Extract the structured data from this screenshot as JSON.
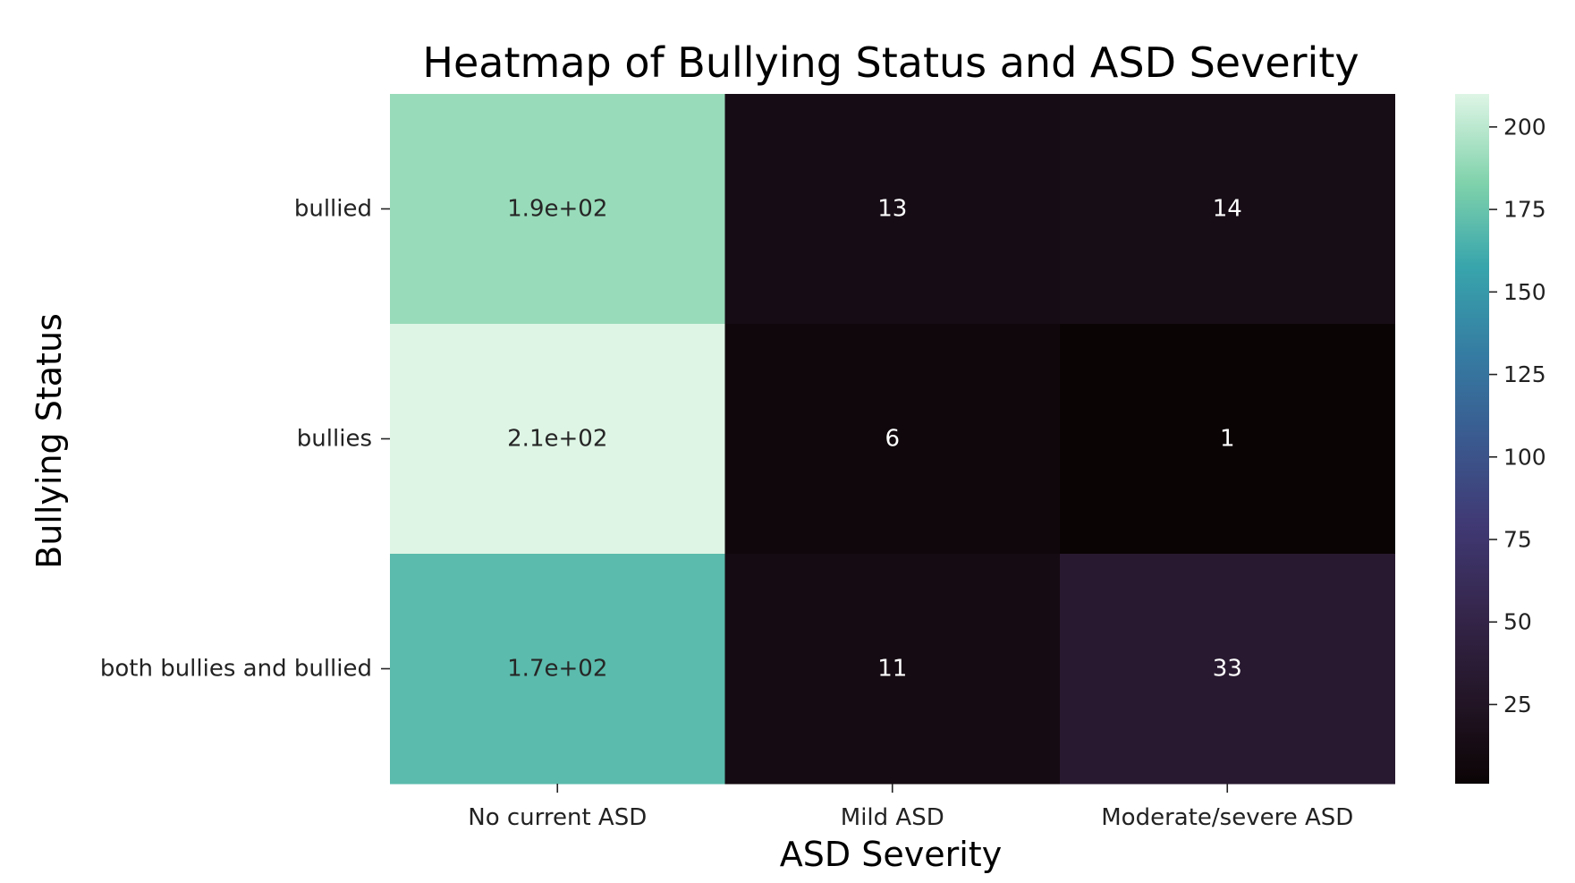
{
  "chart_data": {
    "type": "heatmap",
    "title": "Heatmap of Bullying Status and ASD Severity",
    "xlabel": "ASD Severity",
    "ylabel": "Bullying Status",
    "x_categories": [
      "No current ASD",
      "Mild ASD",
      "Moderate/severe ASD"
    ],
    "y_categories": [
      "bullied",
      "bullies",
      "both bullies and bullied"
    ],
    "values": [
      [
        190,
        13,
        14
      ],
      [
        210,
        6,
        1
      ],
      [
        170,
        11,
        33
      ]
    ],
    "annotations": [
      [
        "1.9e+02",
        "13",
        "14"
      ],
      [
        "2.1e+02",
        "6",
        "1"
      ],
      [
        "1.7e+02",
        "11",
        "33"
      ]
    ],
    "colormap": "mako",
    "colorbar": {
      "range": [
        1,
        210
      ],
      "ticks": [
        25,
        50,
        75,
        100,
        125,
        150,
        175,
        200
      ],
      "tick_labels": [
        "25",
        "50",
        "75",
        "100",
        "125",
        "150",
        "175",
        "200"
      ]
    }
  }
}
